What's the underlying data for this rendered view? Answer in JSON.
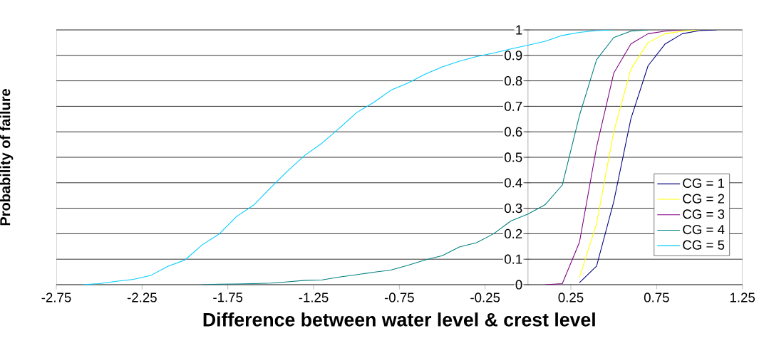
{
  "chart_data": {
    "type": "line",
    "xlabel": "Difference between water level & crest level",
    "ylabel": "Probability of failure",
    "xlim": [
      -2.75,
      1.25
    ],
    "ylim": [
      0,
      1
    ],
    "xticks": [
      -2.75,
      -2.25,
      -1.75,
      -1.25,
      -0.75,
      -0.25,
      0.25,
      0.75,
      1.25
    ],
    "yticks": [
      0,
      0.1,
      0.2,
      0.3,
      0.4,
      0.5,
      0.6,
      0.7,
      0.8,
      0.9,
      1
    ],
    "grid": "y",
    "legend": "bottom right",
    "marker": "none",
    "line_style": "solid",
    "series": [
      {
        "name": "CG = 1",
        "color": "#000080",
        "x": [
          0.3,
          0.4,
          0.5,
          0.6,
          0.7,
          0.8,
          0.9,
          1.0,
          1.1
        ],
        "values": [
          0.008,
          0.073,
          0.326,
          0.651,
          0.859,
          0.945,
          0.985,
          0.997,
          1
        ]
      },
      {
        "name": "CG = 2",
        "color": "#ffff00",
        "x": [
          0.3,
          0.4,
          0.5,
          0.6,
          0.7,
          0.8,
          0.9,
          1.0
        ],
        "values": [
          0.028,
          0.24,
          0.6,
          0.846,
          0.95,
          0.985,
          0.995,
          1
        ]
      },
      {
        "name": "CG = 3",
        "color": "#800080",
        "x": [
          0.1,
          0.2,
          0.3,
          0.4,
          0.5,
          0.6,
          0.7,
          0.8,
          0.9
        ],
        "values": [
          0,
          0.004,
          0.166,
          0.54,
          0.83,
          0.945,
          0.985,
          0.995,
          1
        ]
      },
      {
        "name": "CG = 4",
        "color": "#008080",
        "x": [
          -1.9,
          -1.8,
          -1.7,
          -1.6,
          -1.5,
          -1.4,
          -1.3,
          -1.2,
          -1.1,
          -1.0,
          -0.9,
          -0.8,
          -0.7,
          -0.6,
          -0.5,
          -0.4,
          -0.3,
          -0.2,
          -0.1,
          0,
          0.1,
          0.2,
          0.3,
          0.4,
          0.5,
          0.6,
          0.7
        ],
        "values": [
          0,
          0.002,
          0.003,
          0.004,
          0.006,
          0.011,
          0.017,
          0.019,
          0.03,
          0.039,
          0.049,
          0.057,
          0.076,
          0.097,
          0.114,
          0.148,
          0.165,
          0.2,
          0.25,
          0.277,
          0.314,
          0.391,
          0.664,
          0.883,
          0.97,
          0.995,
          1
        ]
      },
      {
        "name": "CG = 5",
        "color": "#00ccff",
        "x": [
          -2.6,
          -2.5,
          -2.4,
          -2.3,
          -2.2,
          -2.1,
          -2.0,
          -1.9,
          -1.8,
          -1.7,
          -1.6,
          -1.5,
          -1.4,
          -1.3,
          -1.2,
          -1.1,
          -1.0,
          -0.9,
          -0.8,
          -0.7,
          -0.6,
          -0.5,
          -0.4,
          -0.3,
          -0.2,
          -0.1,
          0,
          0.1,
          0.2,
          0.3,
          0.4,
          0.5
        ],
        "values": [
          0,
          0.004,
          0.013,
          0.021,
          0.036,
          0.072,
          0.097,
          0.156,
          0.199,
          0.267,
          0.312,
          0.381,
          0.447,
          0.508,
          0.556,
          0.614,
          0.675,
          0.715,
          0.763,
          0.791,
          0.826,
          0.855,
          0.877,
          0.895,
          0.909,
          0.925,
          0.94,
          0.955,
          0.978,
          0.99,
          0.997,
          1
        ]
      }
    ]
  }
}
